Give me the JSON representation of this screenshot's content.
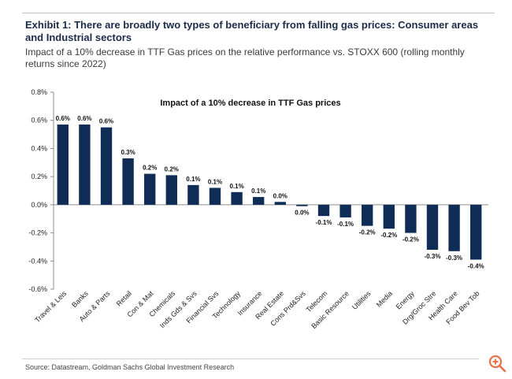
{
  "header": {
    "title": "Exhibit 1: There are broadly two types of beneficiary from falling gas prices: Consumer areas and Industrial sectors",
    "subtitle": "Impact of a 10% decrease in TTF Gas prices on the relative performance vs. STOXX 600 (rolling monthly returns since 2022)"
  },
  "chart_data": {
    "type": "bar",
    "title": "Impact of a 10% decrease in TTF Gas prices",
    "xlabel": "",
    "ylabel": "",
    "ylim": [
      -0.6,
      0.8
    ],
    "yticks": [
      0.8,
      0.6,
      0.4,
      0.2,
      0.0,
      -0.2,
      -0.4,
      -0.6
    ],
    "ytick_labels": [
      "0.8%",
      "0.6%",
      "0.4%",
      "0.2%",
      "0.0%",
      "-0.2%",
      "-0.4%",
      "-0.6%"
    ],
    "bar_color": "#0e2c56",
    "categories": [
      "Travel & Leis",
      "Banks",
      "Auto & Parts",
      "Retail",
      "Con & Mat",
      "Chemicals",
      "Inds Gds & Svs",
      "Financial Svs",
      "Technology",
      "Insurance",
      "Real Estate",
      "Cons Prd&Svs",
      "Telecom",
      "Basic Resource",
      "Utilities",
      "Media",
      "Energy",
      "Drg/Groc Stre",
      "Health Care",
      "Food Bev Tob"
    ],
    "values": [
      0.57,
      0.57,
      0.55,
      0.33,
      0.22,
      0.21,
      0.14,
      0.12,
      0.09,
      0.055,
      0.02,
      -0.01,
      -0.08,
      -0.09,
      -0.15,
      -0.17,
      -0.2,
      -0.32,
      -0.33,
      -0.39
    ],
    "data_labels": [
      "0.6%",
      "0.6%",
      "0.6%",
      "0.3%",
      "0.2%",
      "0.2%",
      "0.1%",
      "0.1%",
      "0.1%",
      "0.1%",
      "0.0%",
      "0.0%",
      "-0.1%",
      "-0.1%",
      "-0.2%",
      "-0.2%",
      "-0.2%",
      "-0.3%",
      "-0.3%",
      "-0.4%"
    ]
  },
  "footer": {
    "source": "Source: Datastream, Goldman Sachs Global Investment Research"
  },
  "controls": {
    "zoom_icon": "zoom-in-icon",
    "zoom_color": "#e8734a"
  }
}
